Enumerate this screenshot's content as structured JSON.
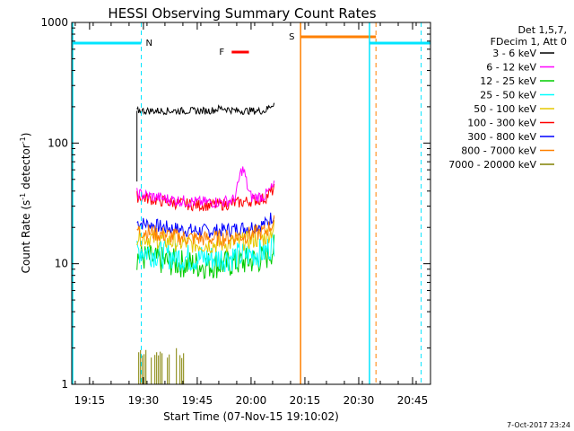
{
  "chart_data": {
    "type": "line",
    "title": "HESSI Observing Summary Count Rates",
    "xlabel": "Start Time (07-Nov-15 19:10:02)",
    "ylabel_main": "Count Rate (s",
    "ylabel_exp1": "-1",
    "ylabel_mid": " detector",
    "ylabel_exp2": "-1",
    "ylabel_end": ")",
    "y_scale": "log",
    "ylim": [
      1,
      1000
    ],
    "y_ticks": [
      {
        "v": 1,
        "label": "1"
      },
      {
        "v": 10,
        "label": "10"
      },
      {
        "v": 100,
        "label": "100"
      },
      {
        "v": 1000,
        "label": "1000"
      }
    ],
    "xlim_minutes": [
      19.17,
      20.83
    ],
    "x_ticks": [
      {
        "label": "19:15",
        "h": 19.25
      },
      {
        "label": "19:30",
        "h": 19.5
      },
      {
        "label": "19:45",
        "h": 19.75
      },
      {
        "label": "20:00",
        "h": 20.0
      },
      {
        "label": "20:15",
        "h": 20.25
      },
      {
        "label": "20:30",
        "h": 20.5
      },
      {
        "label": "20:45",
        "h": 20.75
      }
    ],
    "legend": {
      "header1": "Det 1,5,7,",
      "header2": "FDecim 1, Att 0",
      "entries": [
        {
          "label": "3 - 6 keV",
          "color": "#000000"
        },
        {
          "label": "6 - 12 keV",
          "color": "#ff00ff"
        },
        {
          "label": "12 - 25 keV",
          "color": "#00cc00"
        },
        {
          "label": "25 - 50 keV",
          "color": "#00ffff"
        },
        {
          "label": "50 - 100 keV",
          "color": "#e6c800"
        },
        {
          "label": "100 - 300 keV",
          "color": "#ff0000"
        },
        {
          "label": "300 - 800 keV",
          "color": "#0000ff"
        },
        {
          "label": "800 - 7000 keV",
          "color": "#ff8000"
        },
        {
          "label": "7000 - 20000 keV",
          "color": "#808000"
        }
      ]
    },
    "flags": [
      {
        "label": "N",
        "color": "#00e5ff"
      },
      {
        "label": "F",
        "color": "#ff0000"
      },
      {
        "label": "S",
        "color": "#ff8000"
      }
    ],
    "series": [
      {
        "band": "3 - 6 keV",
        "color": "#000000",
        "start_h": 19.47,
        "end_h": 20.11,
        "level": 185,
        "noise": 0.03
      },
      {
        "band": "6 - 12 keV",
        "color": "#ff00ff",
        "start_h": 19.47,
        "end_h": 20.11,
        "level": 38,
        "noise": 0.05,
        "peak": {
          "h": 19.96,
          "value": 64
        }
      },
      {
        "band": "12 - 25 keV",
        "color": "#00cc00",
        "start_h": 19.47,
        "end_h": 20.11,
        "level": 11.5,
        "noise": 0.12
      },
      {
        "band": "25 - 50 keV",
        "color": "#00ffff",
        "start_h": 19.47,
        "end_h": 20.11,
        "level": 13,
        "noise": 0.12
      },
      {
        "band": "50 - 100 keV",
        "color": "#e6c800",
        "start_h": 19.47,
        "end_h": 20.11,
        "level": 17,
        "noise": 0.08
      },
      {
        "band": "100 - 300 keV",
        "color": "#ff0000",
        "start_h": 19.47,
        "end_h": 20.11,
        "level": 36,
        "noise": 0.05
      },
      {
        "band": "300 - 800 keV",
        "color": "#0000ff",
        "start_h": 19.47,
        "end_h": 20.11,
        "level": 22,
        "noise": 0.06
      },
      {
        "band": "800 - 7000 keV",
        "color": "#ff8000",
        "start_h": 19.47,
        "end_h": 20.11,
        "level": 19,
        "noise": 0.07
      },
      {
        "band": "7000 - 20000 keV",
        "color": "#808000",
        "start_h": 19.47,
        "end_h": 19.69,
        "level": 1,
        "noise": 0
      }
    ]
  },
  "footer_timestamp": "7-Oct-2017 23:24"
}
